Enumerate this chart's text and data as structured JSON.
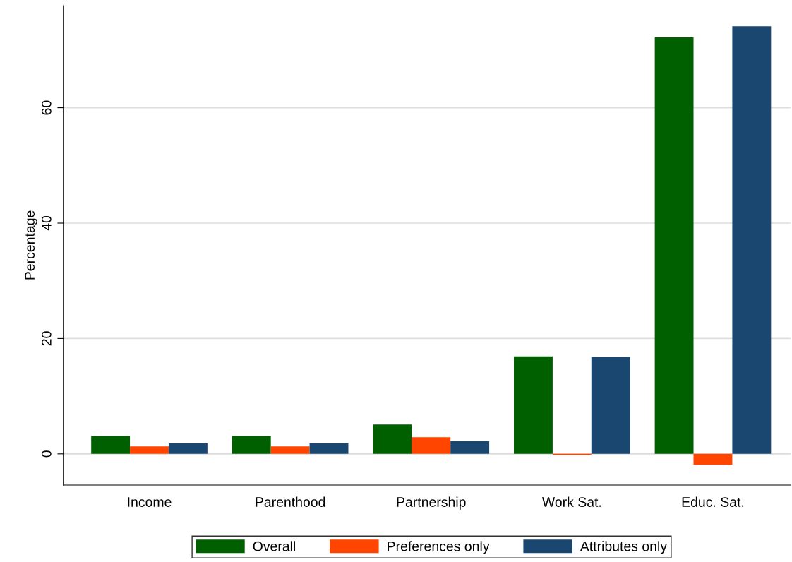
{
  "chart_data": {
    "type": "bar",
    "ylabel": "Percentage",
    "categories": [
      "Income",
      "Parenthood",
      "Partnership",
      "Work Sat.",
      "Educ. Sat."
    ],
    "series": [
      {
        "name": "Overall",
        "color": "#006000",
        "values": [
          3.1,
          3.1,
          5.1,
          16.9,
          72.2
        ]
      },
      {
        "name": "Preferences only",
        "color": "#ff4500",
        "values": [
          1.3,
          1.3,
          2.9,
          -0.2,
          -1.9
        ]
      },
      {
        "name": "Attributes only",
        "color": "#1a476f",
        "values": [
          1.8,
          1.8,
          2.2,
          16.8,
          74.1
        ]
      }
    ],
    "ylim": [
      -5.4,
      77.7
    ],
    "yticks": [
      0,
      20,
      40,
      60
    ],
    "grid": "y",
    "legend": "bottom"
  }
}
